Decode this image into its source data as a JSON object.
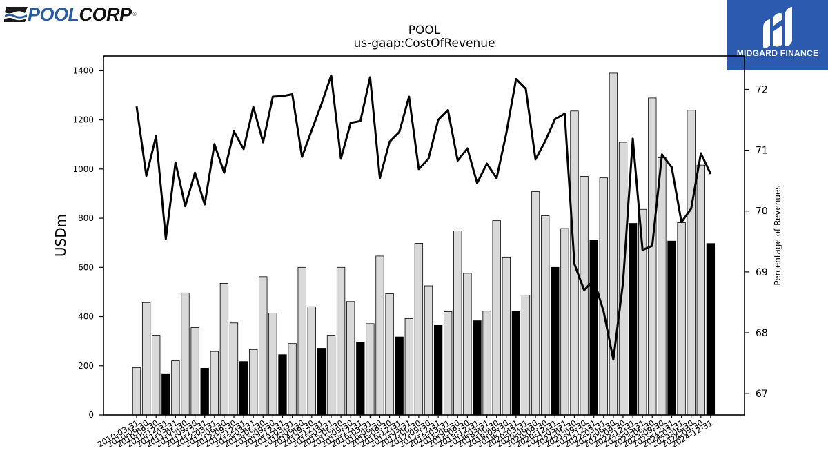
{
  "logo": {
    "left_part": "POOL",
    "right_part": "CORP",
    "registered": "®",
    "icon": "pool-waves-icon",
    "brand_color": "#2a5aa0"
  },
  "watermark": {
    "brand": "MIDGARD FINANCE",
    "icon": "midgard-m-icon",
    "background": "#2b5aae"
  },
  "chart_data": {
    "type": "bar",
    "title": "POOL",
    "subtitle": "us-gaap:CostOfRevenue",
    "ylabel": "USDm",
    "y2label": "Percentage of Revenues",
    "ylim": [
      0,
      1460
    ],
    "y2lim": [
      66.65,
      72.55
    ],
    "yticks": [
      0,
      200,
      400,
      600,
      800,
      1000,
      1200,
      1400
    ],
    "y2ticks": [
      67,
      68,
      69,
      70,
      71,
      72
    ],
    "categories": [
      "2010-03-31",
      "2010-06-30",
      "2010-09-30",
      "2010-12-31",
      "2011-03-31",
      "2011-06-30",
      "2011-09-30",
      "2011-12-31",
      "2012-03-31",
      "2012-06-30",
      "2012-09-30",
      "2012-12-31",
      "2013-03-31",
      "2013-06-30",
      "2013-09-30",
      "2013-12-31",
      "2014-03-31",
      "2014-06-30",
      "2014-09-30",
      "2014-12-31",
      "2015-03-31",
      "2015-06-30",
      "2015-09-30",
      "2015-12-31",
      "2016-03-31",
      "2016-06-30",
      "2016-09-30",
      "2016-12-31",
      "2017-03-31",
      "2017-06-30",
      "2017-09-30",
      "2017-12-31",
      "2018-03-31",
      "2018-06-30",
      "2018-09-30",
      "2018-12-31",
      "2019-03-31",
      "2019-06-30",
      "2019-09-30",
      "2019-12-31",
      "2020-03-31",
      "2020-06-30",
      "2020-09-30",
      "2020-12-31",
      "2021-03-31",
      "2021-06-30",
      "2021-09-30",
      "2021-12-31",
      "2022-03-31",
      "2022-06-30",
      "2022-09-30",
      "2022-12-31",
      "2023-03-31",
      "2023-06-30",
      "2023-09-30",
      "2023-12-31",
      "2024-03-31",
      "2024-06-30",
      "2024-09-30",
      "2024-12-31"
    ],
    "series": [
      {
        "kind": "bar",
        "axis": "left",
        "values": [
          192,
          457,
          324,
          165,
          220,
          496,
          355,
          190,
          258,
          535,
          374,
          217,
          266,
          562,
          414,
          245,
          290,
          600,
          440,
          271,
          324,
          600,
          461,
          296,
          371,
          646,
          493,
          317,
          392,
          698,
          525,
          364,
          420,
          748,
          576,
          383,
          422,
          790,
          642,
          420,
          487,
          908,
          810,
          600,
          758,
          1236,
          970,
          711,
          964,
          1390,
          1109,
          779,
          836,
          1289,
          1046,
          707,
          782,
          1239,
          1016,
          697
        ],
        "colors": [
          "#d9d9d9",
          "#d9d9d9",
          "#d9d9d9",
          "#000000",
          "#d9d9d9",
          "#d9d9d9",
          "#d9d9d9",
          "#000000",
          "#d9d9d9",
          "#d9d9d9",
          "#d9d9d9",
          "#000000",
          "#d9d9d9",
          "#d9d9d9",
          "#d9d9d9",
          "#000000",
          "#d9d9d9",
          "#d9d9d9",
          "#d9d9d9",
          "#000000",
          "#d9d9d9",
          "#d9d9d9",
          "#d9d9d9",
          "#000000",
          "#d9d9d9",
          "#d9d9d9",
          "#d9d9d9",
          "#000000",
          "#d9d9d9",
          "#d9d9d9",
          "#d9d9d9",
          "#000000",
          "#d9d9d9",
          "#d9d9d9",
          "#d9d9d9",
          "#000000",
          "#d9d9d9",
          "#d9d9d9",
          "#d9d9d9",
          "#000000",
          "#d9d9d9",
          "#d9d9d9",
          "#d9d9d9",
          "#000000",
          "#d9d9d9",
          "#d9d9d9",
          "#d9d9d9",
          "#000000",
          "#d9d9d9",
          "#d9d9d9",
          "#d9d9d9",
          "#000000",
          "#d9d9d9",
          "#d9d9d9",
          "#d9d9d9",
          "#000000",
          "#d9d9d9",
          "#d9d9d9",
          "#d9d9d9",
          "#000000"
        ]
      },
      {
        "kind": "line",
        "axis": "right",
        "color": "#000000",
        "values": [
          71.72,
          70.58,
          71.23,
          69.54,
          70.8,
          70.08,
          70.63,
          70.11,
          71.1,
          70.63,
          71.31,
          71.02,
          71.71,
          71.13,
          71.88,
          71.89,
          71.92,
          70.89,
          71.33,
          71.76,
          72.23,
          70.86,
          71.45,
          71.48,
          72.2,
          70.54,
          71.14,
          71.3,
          71.88,
          70.69,
          70.86,
          71.5,
          71.66,
          70.83,
          71.03,
          70.46,
          70.78,
          70.54,
          71.28,
          72.17,
          72.01,
          70.85,
          71.15,
          71.51,
          71.6,
          69.13,
          68.7,
          68.87,
          68.35,
          67.56,
          68.83,
          71.19,
          69.36,
          69.43,
          70.93,
          70.72,
          69.82,
          70.04,
          70.95,
          70.61
        ]
      }
    ],
    "grid": false,
    "legend": "none"
  }
}
